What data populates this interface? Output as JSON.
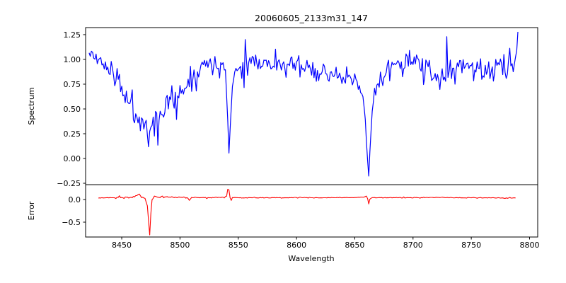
{
  "figure": {
    "title": "20060605_2133m31_147",
    "background_color": "#ffffff",
    "spine_color": "#000000",
    "text_color": "#000000"
  },
  "chart_data": [
    {
      "type": "line",
      "panel": "spectrum",
      "title": "20060605_2133m31_147",
      "xlabel": "Wavelength",
      "ylabel": "Spectrum",
      "xlim": [
        8419,
        8807
      ],
      "ylim": [
        -0.264,
        1.321
      ],
      "x_ticks": [
        8450,
        8500,
        8550,
        8600,
        8650,
        8700,
        8750,
        8800
      ],
      "x_tick_labels": [
        "8450",
        "8500",
        "8550",
        "8600",
        "8650",
        "8700",
        "8750",
        "8800"
      ],
      "y_ticks": [
        1.25,
        1.0,
        0.75,
        0.5,
        0.25,
        0.0,
        -0.25
      ],
      "y_tick_labels": [
        "1.25",
        "1.00",
        "0.75",
        "0.50",
        "0.25",
        "0.00",
        "−0.25"
      ],
      "grid": false,
      "legend": "none",
      "series": [
        {
          "name": "spectrum",
          "color": "#0000ff",
          "x_start": 8422,
          "x_end": 8790,
          "sample_step": 1,
          "envelope_points": [
            [
              8422,
              1.05
            ],
            [
              8425,
              1.07
            ],
            [
              8428,
              0.99
            ],
            [
              8431,
              1.01
            ],
            [
              8434,
              0.97
            ],
            [
              8437,
              0.92
            ],
            [
              8440,
              0.89
            ],
            [
              8443,
              0.85
            ],
            [
              8446,
              0.8
            ],
            [
              8449,
              0.74
            ],
            [
              8452,
              0.66
            ],
            [
              8455,
              0.6
            ],
            [
              8458,
              0.54
            ],
            [
              8461,
              0.48
            ],
            [
              8464,
              0.43
            ],
            [
              8467,
              0.39
            ],
            [
              8470,
              0.34
            ],
            [
              8472,
              0.28
            ],
            [
              8473.5,
              0.1
            ],
            [
              8475,
              0.3
            ],
            [
              8477,
              0.37
            ],
            [
              8480,
              0.41
            ],
            [
              8481,
              0.22
            ],
            [
              8482,
              0.4
            ],
            [
              8484,
              0.47
            ],
            [
              8487,
              0.52
            ],
            [
              8490,
              0.58
            ],
            [
              8493,
              0.62
            ],
            [
              8496,
              0.58
            ],
            [
              8498,
              0.52
            ],
            [
              8500,
              0.62
            ],
            [
              8503,
              0.7
            ],
            [
              8506,
              0.77
            ],
            [
              8509,
              0.82
            ],
            [
              8512,
              0.86
            ],
            [
              8515,
              0.89
            ],
            [
              8518,
              0.92
            ],
            [
              8521,
              0.95
            ],
            [
              8524,
              0.97
            ],
            [
              8527,
              0.96
            ],
            [
              8530,
              0.95
            ],
            [
              8533,
              0.95
            ],
            [
              8536,
              0.93
            ],
            [
              8539,
              0.88
            ],
            [
              8540.5,
              0.55
            ],
            [
              8542,
              0.04
            ],
            [
              8543.5,
              0.42
            ],
            [
              8545,
              0.72
            ],
            [
              8547,
              0.87
            ],
            [
              8550,
              0.93
            ],
            [
              8554,
              0.96
            ],
            [
              8558,
              0.99
            ],
            [
              8562,
              1.0
            ],
            [
              8566,
              0.98
            ],
            [
              8570,
              0.96
            ],
            [
              8575,
              0.95
            ],
            [
              8580,
              0.96
            ],
            [
              8585,
              0.94
            ],
            [
              8590,
              0.92
            ],
            [
              8595,
              0.94
            ],
            [
              8600,
              0.95
            ],
            [
              8605,
              0.93
            ],
            [
              8610,
              0.92
            ],
            [
              8615,
              0.9
            ],
            [
              8620,
              0.89
            ],
            [
              8625,
              0.87
            ],
            [
              8630,
              0.85
            ],
            [
              8635,
              0.83
            ],
            [
              8640,
              0.81
            ],
            [
              8645,
              0.79
            ],
            [
              8650,
              0.77
            ],
            [
              8654,
              0.73
            ],
            [
              8657,
              0.62
            ],
            [
              8659,
              0.4
            ],
            [
              8660.5,
              0.05
            ],
            [
              8662,
              -0.18
            ],
            [
              8663.5,
              0.2
            ],
            [
              8665,
              0.48
            ],
            [
              8667,
              0.65
            ],
            [
              8670,
              0.78
            ],
            [
              8674,
              0.85
            ],
            [
              8678,
              0.89
            ],
            [
              8683,
              0.92
            ],
            [
              8688,
              0.95
            ],
            [
              8693,
              0.98
            ],
            [
              8697,
              1.01
            ],
            [
              8700,
              1.02
            ],
            [
              8703,
              0.99
            ],
            [
              8706,
              0.95
            ],
            [
              8709,
              0.91
            ],
            [
              8712,
              0.88
            ],
            [
              8715,
              0.85
            ],
            [
              8718,
              0.82
            ],
            [
              8721,
              0.79
            ],
            [
              8724,
              0.78
            ],
            [
              8727,
              0.81
            ],
            [
              8730,
              0.85
            ],
            [
              8733,
              0.89
            ],
            [
              8736,
              0.92
            ],
            [
              8740,
              0.94
            ],
            [
              8745,
              0.95
            ],
            [
              8750,
              0.94
            ],
            [
              8755,
              0.92
            ],
            [
              8760,
              0.89
            ],
            [
              8765,
              0.87
            ],
            [
              8770,
              0.9
            ],
            [
              8775,
              0.92
            ],
            [
              8780,
              0.93
            ],
            [
              8784,
              0.94
            ],
            [
              8787,
              0.96
            ],
            [
              8789,
              1.08
            ],
            [
              8790,
              1.26
            ]
          ],
          "noise_segments": [
            [
              8422,
              8437,
              0.05
            ],
            [
              8437,
              8452,
              0.08
            ],
            [
              8452,
              8515,
              0.1
            ],
            [
              8515,
              8538,
              0.07
            ],
            [
              8538,
              8546,
              0.01
            ],
            [
              8546,
              8600,
              0.065
            ],
            [
              8600,
              8655,
              0.08
            ],
            [
              8655,
              8666,
              0.01
            ],
            [
              8666,
              8695,
              0.075
            ],
            [
              8695,
              8786,
              0.095
            ],
            [
              8786,
              8790,
              0.01
            ]
          ],
          "noise_default": 0.02,
          "seed": 11,
          "clamp": [
            -0.255,
            1.3
          ],
          "features": {
            "broad_absorption_trough_range": [
              8445,
              8500
            ],
            "trough_minimum": {
              "x": 8473.5,
              "y": 0.05
            },
            "deep_absorption_lines": [
              {
                "x": 8542,
                "depth": 0.04
              },
              {
                "x": 8662,
                "depth": -0.18
              }
            ],
            "end_spike": {
              "x": 8790,
              "y": 1.26
            }
          }
        }
      ]
    },
    {
      "type": "line",
      "panel": "error",
      "xlabel": "Wavelength",
      "ylabel": "Error",
      "xlim": [
        8419,
        8807
      ],
      "ylim": [
        -0.828,
        0.328
      ],
      "y_ticks": [
        0.0,
        -0.5
      ],
      "y_tick_labels": [
        "0.0",
        "−0.5"
      ],
      "grid": false,
      "legend": "none",
      "series": [
        {
          "name": "error",
          "color": "#ff0000",
          "x_start": 8430,
          "x_end": 8788,
          "sample_step": 1,
          "envelope_points": [
            [
              8430,
              0.035
            ],
            [
              8440,
              0.038
            ],
            [
              8447,
              0.045
            ],
            [
              8450,
              0.055
            ],
            [
              8452,
              0.02
            ],
            [
              8454,
              0.06
            ],
            [
              8456,
              0.03
            ],
            [
              8458,
              0.05
            ],
            [
              8461,
              0.07
            ],
            [
              8463,
              0.1
            ],
            [
              8465,
              0.12
            ],
            [
              8467,
              0.06
            ],
            [
              8470,
              0.02
            ],
            [
              8472,
              -0.15
            ],
            [
              8473.5,
              -0.6
            ],
            [
              8474,
              -0.78
            ],
            [
              8475,
              -0.3
            ],
            [
              8476,
              0.0
            ],
            [
              8478,
              0.08
            ],
            [
              8480,
              0.055
            ],
            [
              8482,
              0.05
            ],
            [
              8485,
              0.075
            ],
            [
              8488,
              0.05
            ],
            [
              8491,
              0.06
            ],
            [
              8494,
              0.05
            ],
            [
              8497,
              0.055
            ],
            [
              8500,
              0.05
            ],
            [
              8503,
              0.052
            ],
            [
              8506,
              0.048
            ],
            [
              8508,
              -0.015
            ],
            [
              8510,
              0.045
            ],
            [
              8514,
              0.042
            ],
            [
              8520,
              0.04
            ],
            [
              8527,
              0.042
            ],
            [
              8533,
              0.044
            ],
            [
              8538,
              0.05
            ],
            [
              8540,
              0.08
            ],
            [
              8541.5,
              0.3
            ],
            [
              8542.5,
              0.12
            ],
            [
              8543.5,
              -0.04
            ],
            [
              8545,
              0.042
            ],
            [
              8550,
              0.04
            ],
            [
              8558,
              0.038
            ],
            [
              8570,
              0.04
            ],
            [
              8585,
              0.038
            ],
            [
              8600,
              0.04
            ],
            [
              8615,
              0.038
            ],
            [
              8630,
              0.04
            ],
            [
              8642,
              0.042
            ],
            [
              8652,
              0.045
            ],
            [
              8656,
              0.05
            ],
            [
              8659,
              0.06
            ],
            [
              8660.5,
              0.1
            ],
            [
              8661.8,
              -0.12
            ],
            [
              8663,
              0.01
            ],
            [
              8664.5,
              0.042
            ],
            [
              8670,
              0.04
            ],
            [
              8680,
              0.038
            ],
            [
              8695,
              0.04
            ],
            [
              8710,
              0.042
            ],
            [
              8725,
              0.044
            ],
            [
              8740,
              0.04
            ],
            [
              8755,
              0.038
            ],
            [
              8770,
              0.038
            ],
            [
              8782,
              0.036
            ],
            [
              8788,
              0.034
            ]
          ],
          "noise_segments": [
            [
              8445,
              8505,
              0.012
            ],
            [
              8505,
              8540,
              0.007
            ],
            [
              8546,
              8656,
              0.005
            ],
            [
              8664,
              8788,
              0.005
            ]
          ],
          "noise_default": 0.004,
          "seed": 23,
          "clamp": [
            -0.82,
            0.32
          ],
          "features": {
            "baseline_level": 0.04,
            "down_spike": {
              "x": 8474,
              "y": -0.78
            },
            "up_spike": {
              "x": 8542,
              "y": 0.3
            },
            "wiggle": {
              "x": 8662,
              "y": -0.12
            }
          }
        }
      ]
    }
  ]
}
